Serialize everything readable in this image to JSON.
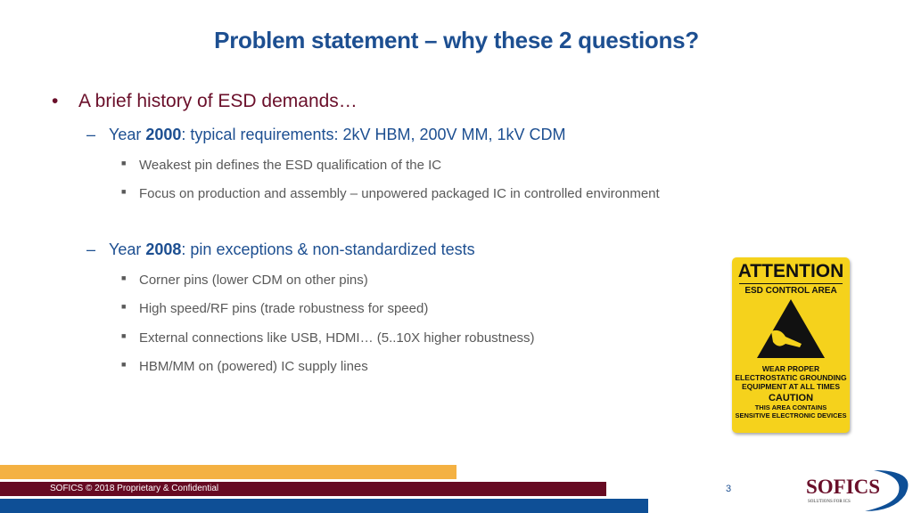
{
  "title": "Problem statement – why these 2 questions?",
  "bullets": {
    "main": "A brief history of ESD demands…",
    "y2000": {
      "prefix": "Year ",
      "year": "2000",
      "rest": ": typical requirements: 2kV HBM, 200V MM, 1kV CDM",
      "items": [
        "Weakest pin defines the ESD qualification of the IC",
        "Focus on production and assembly – unpowered packaged IC in controlled environment"
      ]
    },
    "y2008": {
      "prefix": "Year ",
      "year": "2008",
      "rest": ": pin exceptions & non-standardized tests",
      "items": [
        "Corner pins (lower CDM on other pins)",
        "High speed/RF pins (trade robustness for speed)",
        "External connections like USB, HDMI… (5..10X higher robustness)",
        "HBM/MM on (powered) IC supply lines"
      ]
    }
  },
  "sign": {
    "attention": "ATTENTION",
    "area": "ESD CONTROL AREA",
    "wear": [
      "WEAR PROPER",
      "ELECTROSTATIC GROUNDING",
      "EQUIPMENT AT ALL TIMES"
    ],
    "caution": "CAUTION",
    "contains": [
      "THIS AREA CONTAINS",
      "SENSITIVE ELECTRONIC DEVICES"
    ],
    "color": "#f5d21c"
  },
  "footer": {
    "text": "SOFICS © 2018 Proprietary & Confidential",
    "page": "3",
    "colors": {
      "orange": "#f4b142",
      "maroon": "#660a22",
      "blue": "#0e4f96"
    }
  },
  "logo": {
    "name": "SOFICS",
    "tagline": "SOLUTIONS FOR ICS"
  }
}
